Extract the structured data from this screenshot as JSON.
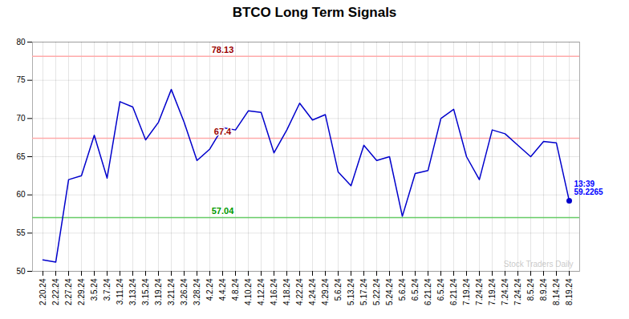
{
  "chart_data": {
    "type": "line",
    "title": "BTCO Long Term Signals",
    "categories": [
      "2.20.24",
      "2.22.24",
      "2.27.24",
      "2.29.24",
      "3.5.24",
      "3.7.24",
      "3.11.24",
      "3.13.24",
      "3.15.24",
      "3.19.24",
      "3.21.24",
      "3.26.24",
      "3.28.24",
      "4.2.24",
      "4.4.24",
      "4.8.24",
      "4.10.24",
      "4.12.24",
      "4.16.24",
      "4.18.24",
      "4.22.24",
      "4.24.24",
      "4.29.24",
      "5.6.24",
      "5.13.24",
      "5.17.24",
      "5.22.24",
      "5.24.24",
      "5.6.24",
      "6.5.24",
      "6.21.24",
      "6.5.24",
      "6.21.24",
      "7.19.24",
      "7.24.24",
      "7.19.24",
      "7.24.24",
      "7.24.24",
      "8.5.24",
      "8.9.24",
      "8.14.24",
      "8.19.24"
    ],
    "values": [
      51.5,
      51.2,
      62.0,
      62.5,
      67.8,
      62.2,
      72.2,
      71.5,
      67.2,
      69.5,
      73.8,
      69.5,
      64.5,
      66.0,
      68.8,
      68.5,
      71.0,
      70.8,
      65.5,
      68.5,
      72.0,
      69.8,
      70.5,
      63.0,
      61.2,
      66.5,
      64.5,
      65.0,
      57.2,
      62.8,
      63.2,
      70.0,
      71.2,
      65.0,
      62.0,
      68.5,
      68.0,
      66.5,
      65.0,
      67.0,
      66.8,
      59.2265
    ],
    "color": "#0000cc",
    "reference_lines": [
      {
        "value": 78.13,
        "label": "78.13",
        "color": "#ffaaaa",
        "label_color": "#990000"
      },
      {
        "value": 67.4,
        "label": "67.4",
        "color": "#ffaaaa",
        "label_color": "#990000"
      },
      {
        "value": 57.04,
        "label": "57.04",
        "color": "#66cc66",
        "label_color": "#009900"
      }
    ],
    "annotations": [
      {
        "text": "13:39\n59.2265",
        "color": "#0000ff"
      },
      {
        "text": "Stock Traders Daily",
        "color": "#bbbbbb"
      }
    ],
    "ylim": [
      50,
      80
    ],
    "yticks": [
      50,
      55,
      60,
      65,
      70,
      75,
      80
    ],
    "grid": true
  }
}
